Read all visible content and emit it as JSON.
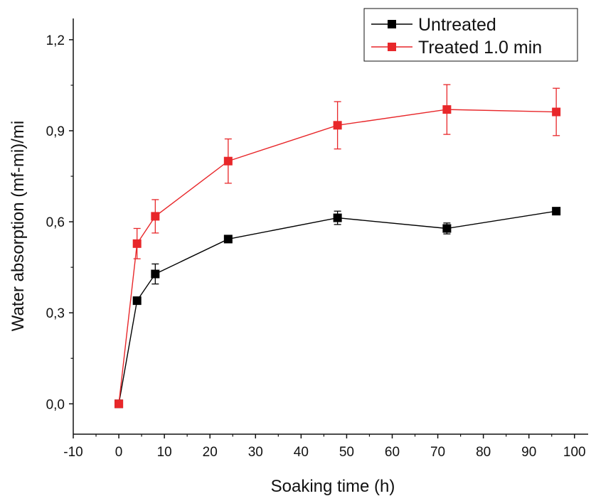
{
  "chart_data": {
    "type": "line",
    "title": "",
    "xlabel": "Soaking time (h)",
    "ylabel": "Water absorption (mf-mi)/mi",
    "xlim": [
      -10,
      103
    ],
    "ylim": [
      -0.1,
      1.27
    ],
    "x_ticks": [
      -10,
      0,
      10,
      20,
      30,
      40,
      50,
      60,
      70,
      80,
      90,
      100
    ],
    "x_tick_labels": [
      "-10",
      "0",
      "10",
      "20",
      "30",
      "40",
      "50",
      "60",
      "70",
      "80",
      "90",
      "100"
    ],
    "y_ticks": [
      0,
      0.3,
      0.6,
      0.9,
      1.2
    ],
    "y_tick_labels": [
      "0,0",
      "0,3",
      "0,6",
      "0,9",
      "1,2"
    ],
    "grid": false,
    "legend_position": "top-right",
    "series": [
      {
        "name": "Untreated",
        "color": "#000000",
        "marker": "square",
        "x": [
          0,
          4,
          8,
          24,
          48,
          72,
          96
        ],
        "y": [
          0,
          0.34,
          0.428,
          0.543,
          0.613,
          0.578,
          0.635
        ],
        "error": [
          0,
          0,
          0.033,
          0,
          0.022,
          0.018,
          0
        ]
      },
      {
        "name": "Treated 1.0 min",
        "color": "#e8272a",
        "marker": "square",
        "x": [
          0,
          4,
          8,
          24,
          48,
          72,
          96
        ],
        "y": [
          0,
          0.528,
          0.618,
          0.8,
          0.918,
          0.97,
          0.962
        ],
        "error": [
          0,
          0.05,
          0.055,
          0.073,
          0.078,
          0.082,
          0.078
        ]
      }
    ]
  }
}
